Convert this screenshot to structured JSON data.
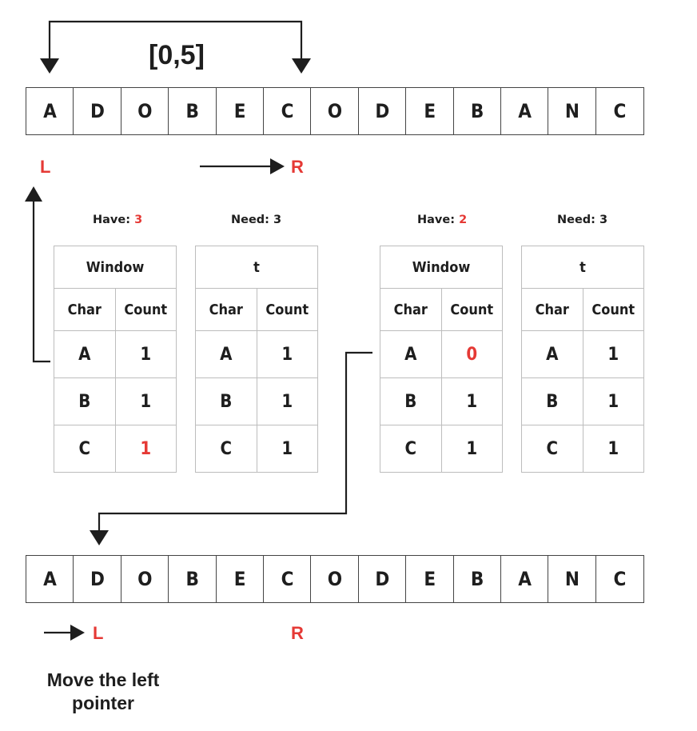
{
  "range_label": "[0,5]",
  "string_chars": [
    "A",
    "D",
    "O",
    "B",
    "E",
    "C",
    "O",
    "D",
    "E",
    "B",
    "A",
    "N",
    "C"
  ],
  "top": {
    "left_pointer": "L",
    "right_pointer": "R"
  },
  "left_state": {
    "have_label": "Have:",
    "have_value": "3",
    "need_label": "Need: 3",
    "window": {
      "title": "Window",
      "char_header": "Char",
      "count_header": "Count",
      "rows": [
        {
          "char": "A",
          "count": "1"
        },
        {
          "char": "B",
          "count": "1"
        },
        {
          "char": "C",
          "count": "1"
        }
      ]
    },
    "target": {
      "title": "t",
      "char_header": "Char",
      "count_header": "Count",
      "rows": [
        {
          "char": "A",
          "count": "1"
        },
        {
          "char": "B",
          "count": "1"
        },
        {
          "char": "C",
          "count": "1"
        }
      ]
    }
  },
  "right_state": {
    "have_label": "Have:",
    "have_value": "2",
    "need_label": "Need: 3",
    "window": {
      "title": "Window",
      "char_header": "Char",
      "count_header": "Count",
      "rows": [
        {
          "char": "A",
          "count": "0"
        },
        {
          "char": "B",
          "count": "1"
        },
        {
          "char": "C",
          "count": "1"
        }
      ]
    },
    "target": {
      "title": "t",
      "char_header": "Char",
      "count_header": "Count",
      "rows": [
        {
          "char": "A",
          "count": "1"
        },
        {
          "char": "B",
          "count": "1"
        },
        {
          "char": "C",
          "count": "1"
        }
      ]
    }
  },
  "bottom": {
    "left_pointer": "L",
    "right_pointer": "R"
  },
  "caption_line1": "Move the left",
  "caption_line2": "pointer",
  "colors": {
    "accent": "#e53935",
    "ink": "#1e1e1e",
    "border": "#444444",
    "grid": "#bdbdbd"
  }
}
